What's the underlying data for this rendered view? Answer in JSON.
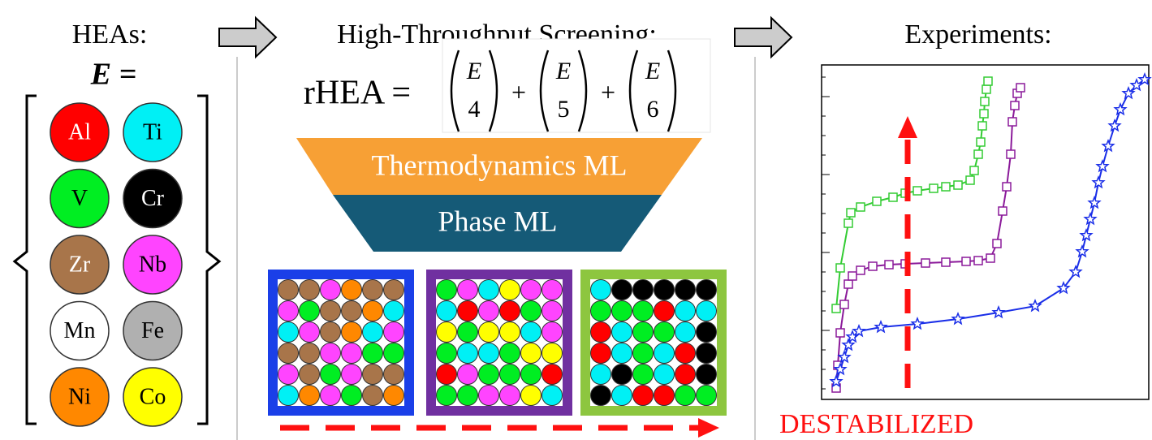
{
  "left": {
    "title": "HEAs:",
    "equation": "E =",
    "elements": [
      {
        "label": "Al",
        "color": "#ff0000",
        "text_color": "#ffffff"
      },
      {
        "label": "Ti",
        "color": "#00f0f5",
        "text_color": "#000000"
      },
      {
        "label": "V",
        "color": "#00ee22",
        "text_color": "#000000"
      },
      {
        "label": "Cr",
        "color": "#000000",
        "text_color": "#ffffff"
      },
      {
        "label": "Zr",
        "color": "#a8754a",
        "text_color": "#ffffff"
      },
      {
        "label": "Nb",
        "color": "#ff44ff",
        "text_color": "#000000"
      },
      {
        "label": "Mn",
        "color": "#ffffff",
        "text_color": "#000000"
      },
      {
        "label": "Fe",
        "color": "#b0b0b0",
        "text_color": "#000000"
      },
      {
        "label": "Ni",
        "color": "#ff8800",
        "text_color": "#000000"
      },
      {
        "label": "Co",
        "color": "#ffff00",
        "text_color": "#000000"
      }
    ]
  },
  "middle": {
    "title": "High-Throughput Screening:",
    "formula": {
      "lhs": "rHEA =",
      "operator": "+",
      "terms": [
        {
          "top": "E",
          "bottom": "4"
        },
        {
          "top": "E",
          "bottom": "5"
        },
        {
          "top": "E",
          "bottom": "6"
        }
      ]
    },
    "funnel": {
      "top": "Thermodynamics ML",
      "bottom": "Phase ML"
    }
  },
  "right": {
    "title": "Experiments:",
    "annotation": "DESTABILIZED"
  }
}
